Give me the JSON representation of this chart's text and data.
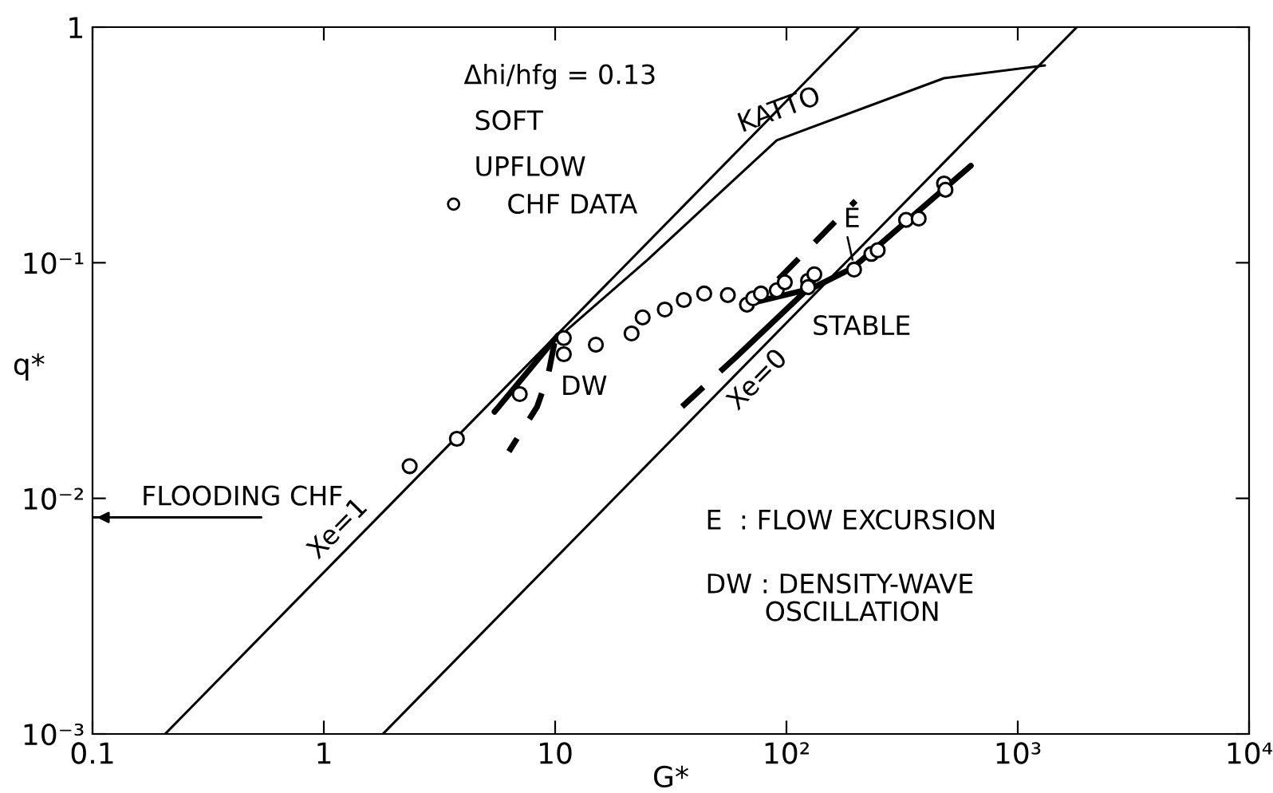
{
  "chart_data": {
    "type": "line",
    "xlabel": "G*",
    "ylabel": "q*",
    "log": "xy",
    "grid": false,
    "legend": "top left",
    "xlim": [
      0.1,
      10000
    ],
    "ylim": [
      0.001,
      1
    ],
    "xticks": [
      {
        "value": 0.1,
        "label": "0.1"
      },
      1,
      10,
      {
        "value": 100,
        "label": "10²"
      },
      {
        "value": 1000,
        "label": "10³"
      },
      {
        "value": 10000,
        "label": "10⁴"
      }
    ],
    "yticks": [
      {
        "value": 0.001,
        "label": "10⁻³"
      },
      {
        "value": 0.01,
        "label": "10⁻²"
      },
      {
        "value": 0.1,
        "label": "10⁻¹"
      },
      1
    ],
    "series": [
      {
        "name": "Xe=1",
        "color": "#000000",
        "line_style": "solid",
        "x": [
          0.206,
          206
        ],
        "values": [
          0.001,
          1
        ]
      },
      {
        "name": "Xe=0",
        "color": "#000000",
        "line_style": "solid",
        "x": [
          1.8,
          1800
        ],
        "values": [
          0.001,
          1
        ]
      },
      {
        "name": "KATTO",
        "color": "#000000",
        "line_style": "solid",
        "x": [
          10.6,
          25.1,
          90.8,
          480,
          1310
        ],
        "values": [
          0.0493,
          0.103,
          0.331,
          0.607,
          0.688
        ]
      },
      {
        "name": "FLOODING CHF",
        "color": "#000000",
        "line_style": "solid",
        "x": [
          0.1,
          0.536
        ],
        "values": [
          0.0083,
          0.0083
        ]
      },
      {
        "name": "CHF DATA",
        "type": "scatter",
        "color": "#000000",
        "marker": "circle",
        "x": [
          2.35,
          3.76,
          7.03,
          10.9,
          10.9,
          15.0,
          21.4,
          23.9,
          29.8,
          36.0,
          44.1,
          55.8,
          67.5,
          71.8,
          77.6,
          90.8,
          98.4,
          124,
          124,
          132,
          196,
          233,
          248,
          329,
          373,
          480,
          487
        ],
        "values": [
          0.0137,
          0.0179,
          0.0277,
          0.0479,
          0.0409,
          0.0449,
          0.0501,
          0.0586,
          0.0633,
          0.0695,
          0.074,
          0.0729,
          0.0664,
          0.0706,
          0.074,
          0.0764,
          0.0826,
          0.0838,
          0.0788,
          0.0893,
          0.0935,
          0.109,
          0.113,
          0.152,
          0.154,
          0.217,
          0.204
        ]
      },
      {
        "type": "line",
        "color": "#000000",
        "line_style": "solid",
        "x": [
          5.47,
          10.3
        ],
        "values": [
          0.0233,
          0.0493
        ]
      },
      {
        "type": "line",
        "color": "#000000",
        "line_style": "dashed",
        "x": [
          9.93,
          9.33,
          8.36,
          6.31
        ],
        "values": [
          0.0456,
          0.0334,
          0.0245,
          0.0158
        ]
      },
      {
        "type": "line",
        "color": "#000000",
        "line_style": "dashed",
        "x": [
          35.4,
          61.4
        ],
        "values": [
          0.0245,
          0.0403
        ]
      },
      {
        "type": "line",
        "color": "#000000",
        "line_style": "solid",
        "x": [
          61.4,
          120,
          193,
          627
        ],
        "values": [
          0.0403,
          0.0752,
          0.095,
          0.258
        ]
      },
      {
        "type": "line",
        "color": "#000000",
        "line_style": "solid",
        "x": [
          66.4,
          120
        ],
        "values": [
          0.0664,
          0.0764
        ]
      },
      {
        "type": "line",
        "color": "#000000",
        "line_style": "dashed",
        "x": [
          92.3,
          199
        ],
        "values": [
          0.0851,
          0.183
        ]
      }
    ],
    "annotations": [
      "Δhi/hfg = 0.13",
      "SOFT",
      "UPFLOW",
      "DW",
      "STABLE",
      {
        "text": "E",
        "x": 193,
        "y": 0.103
      },
      "E  : FLOW EXCURSION",
      "DW : DENSITY-WAVE\n       OSCILLATION"
    ]
  }
}
